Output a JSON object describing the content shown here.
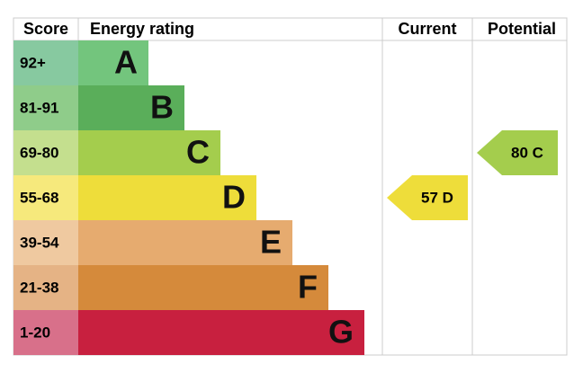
{
  "header": {
    "score": "Score",
    "rating": "Energy rating",
    "current": "Current",
    "potential": "Potential"
  },
  "bands": [
    {
      "score": "92+",
      "rating": "A",
      "color": "#73c57d",
      "score_color": "#87c9a0"
    },
    {
      "score": "81-91",
      "rating": "B",
      "color": "#5aae5a",
      "score_color": "#8fcc8a"
    },
    {
      "score": "69-80",
      "rating": "C",
      "color": "#a4cd4d",
      "score_color": "#c4df8e"
    },
    {
      "score": "55-68",
      "rating": "D",
      "color": "#eedd3a",
      "score_color": "#f6e97c"
    },
    {
      "score": "39-54",
      "rating": "E",
      "color": "#e6ab6f",
      "score_color": "#efc9a0"
    },
    {
      "score": "21-38",
      "rating": "F",
      "color": "#d58a3b",
      "score_color": "#e5b385"
    },
    {
      "score": "1-20",
      "rating": "G",
      "color": "#c8203f",
      "score_color": "#d8708a"
    }
  ],
  "current": {
    "label": "57 D",
    "color": "#eedd3a"
  },
  "potential": {
    "label": "80 C",
    "color": "#a4cd4d"
  }
}
